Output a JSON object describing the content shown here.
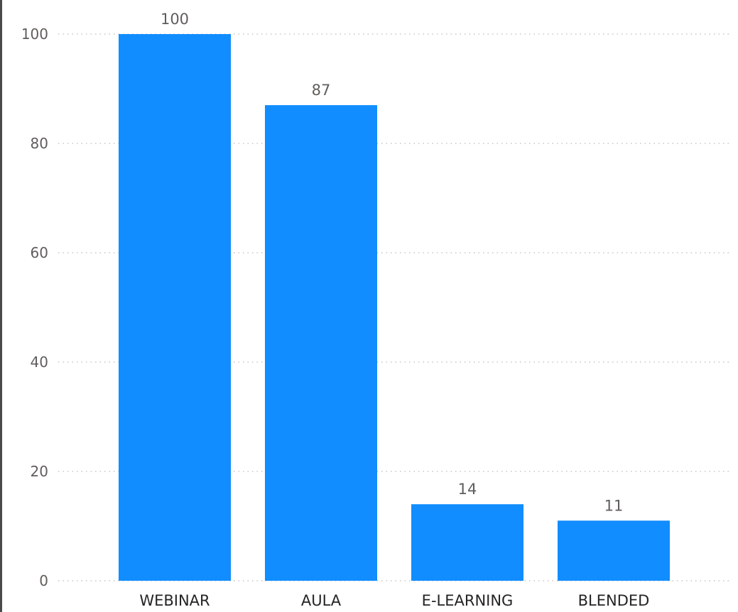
{
  "chart_data": {
    "type": "bar",
    "title": "",
    "xlabel": "",
    "ylabel": "",
    "categories": [
      "WEBINAR",
      "AULA",
      "E-LEARNING",
      "BLENDED"
    ],
    "values": [
      100,
      87,
      14,
      11
    ],
    "data_labels": [
      "100",
      "87",
      "14",
      "11"
    ],
    "yticks": [
      0,
      20,
      40,
      60,
      80,
      100
    ],
    "ylim": [
      0,
      104.8
    ],
    "grid": true,
    "legend": "none",
    "bar_color": "#118dff"
  }
}
